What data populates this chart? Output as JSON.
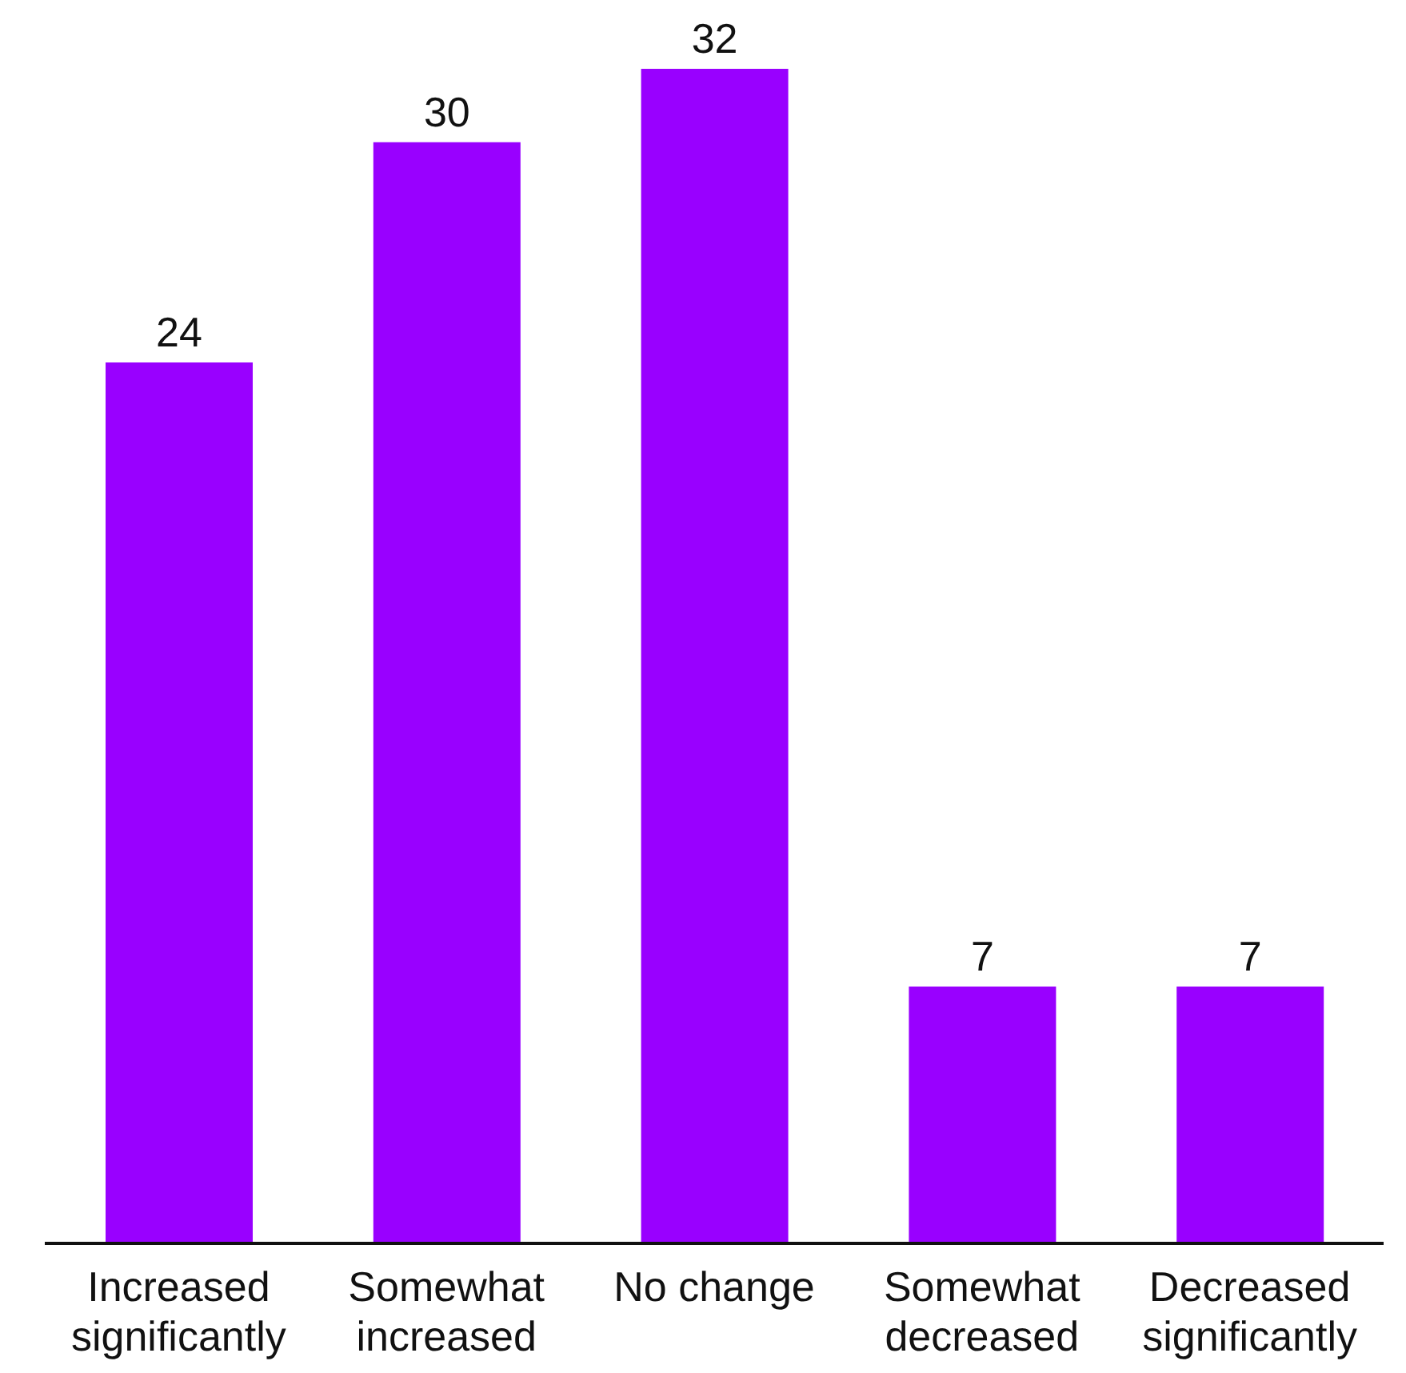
{
  "chart_data": {
    "type": "bar",
    "categories": [
      "Increased significantly",
      "Somewhat increased",
      "No change",
      "Somewhat decreased",
      "Decreased significantly"
    ],
    "values": [
      24,
      30,
      32,
      7,
      7
    ],
    "color": "#9900ff",
    "data_labels": true
  }
}
